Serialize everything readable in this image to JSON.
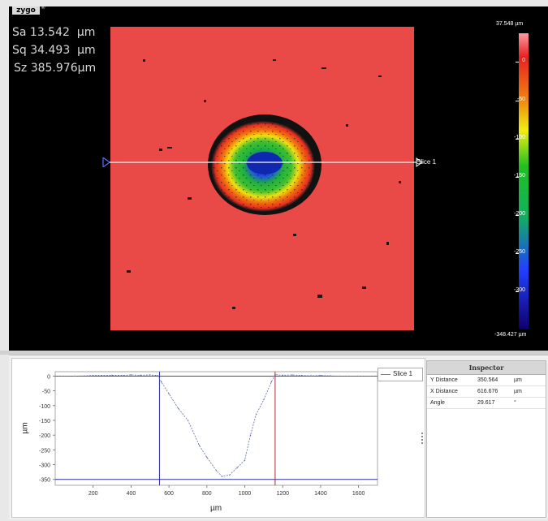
{
  "logo": "zygo",
  "logo_mark": "®",
  "stats": [
    {
      "label": "Sa",
      "value": "13.542",
      "unit": "µm"
    },
    {
      "label": "Sq",
      "value": "34.493",
      "unit": "µm"
    },
    {
      "label": "Sz",
      "value": "385.976",
      "unit": "µm"
    }
  ],
  "slice_label": "Slice 1",
  "colorbar": {
    "max_label": "37.548 µm",
    "min_label": "-348.427 µm",
    "ticks": [
      "0",
      "-50",
      "-100",
      "-150",
      "-200",
      "-250",
      "-300"
    ]
  },
  "profile": {
    "legend": "Slice 1",
    "ylabel": "µm",
    "xlabel": "µm",
    "yticks": [
      "0",
      "-50",
      "-100",
      "-150",
      "-200",
      "-250",
      "-300",
      "-350"
    ],
    "xticks": [
      "200",
      "400",
      "600",
      "800",
      "1000",
      "1200",
      "1400",
      "1600"
    ]
  },
  "chart_data": {
    "type": "line",
    "xlabel": "µm",
    "ylabel": "µm",
    "xlim": [
      0,
      1700
    ],
    "ylim": [
      -370,
      15
    ],
    "series": [
      {
        "name": "Slice 1",
        "x": [
          0,
          100,
          200,
          300,
          350,
          400,
          450,
          500,
          540,
          560,
          600,
          650,
          700,
          760,
          800,
          850,
          880,
          920,
          960,
          1000,
          1030,
          1060,
          1100,
          1140,
          1160,
          1200,
          1250,
          1300,
          1350,
          1400,
          1450,
          1500,
          1600,
          1700
        ],
        "y": [
          0,
          0,
          2,
          3,
          2,
          4,
          3,
          4,
          2,
          -20,
          -60,
          -110,
          -150,
          -235,
          -275,
          -320,
          -340,
          -335,
          -310,
          -285,
          -200,
          -130,
          -80,
          -20,
          5,
          3,
          4,
          2,
          1,
          2,
          1,
          0,
          0,
          0
        ]
      }
    ],
    "markers": {
      "vertical_blue_x": 550,
      "vertical_red_x": 1160,
      "horizontal_red_y": 0,
      "horizontal_blue_y": -350
    }
  },
  "inspector": {
    "title": "Inspector",
    "rows": [
      {
        "label": "Y Distance",
        "value": "350.564",
        "unit": "µm"
      },
      {
        "label": "X Distance",
        "value": "616.676",
        "unit": "µm"
      },
      {
        "label": "Angle",
        "value": "29.617",
        "unit": "°"
      }
    ]
  }
}
